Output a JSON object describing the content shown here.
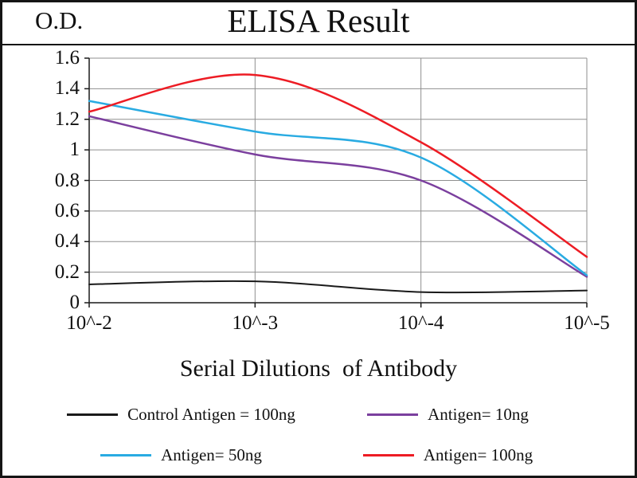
{
  "chart_data": {
    "type": "line",
    "title": "ELISA Result",
    "ylabel": "O.D.",
    "xlabel": "Serial Dilutions  of Antibody",
    "categories": [
      "10^-2",
      "10^-3",
      "10^-4",
      "10^-5"
    ],
    "ylim": [
      0,
      1.6
    ],
    "ytick_step": 0.2,
    "ytick_labels": [
      "0",
      "0.2",
      "0.4",
      "0.6",
      "0.8",
      "1",
      "1.2",
      "1.4",
      "1.6"
    ],
    "grid": true,
    "legend_position": "bottom",
    "series": [
      {
        "name": "Control Antigen = 100ng",
        "color": "#1a1a1a",
        "values": [
          0.12,
          0.14,
          0.07,
          0.08
        ]
      },
      {
        "name": "Antigen= 10ng",
        "color": "#7b3f9e",
        "values": [
          1.22,
          0.97,
          0.8,
          0.17
        ]
      },
      {
        "name": "Antigen= 50ng",
        "color": "#29abe2",
        "values": [
          1.32,
          1.12,
          0.95,
          0.18
        ]
      },
      {
        "name": "Antigen= 100ng",
        "color": "#ed1c24",
        "values": [
          1.25,
          1.49,
          1.05,
          0.3
        ]
      }
    ],
    "grid_color": "#8f8f8f",
    "axis_color": "#1a1a1a"
  }
}
